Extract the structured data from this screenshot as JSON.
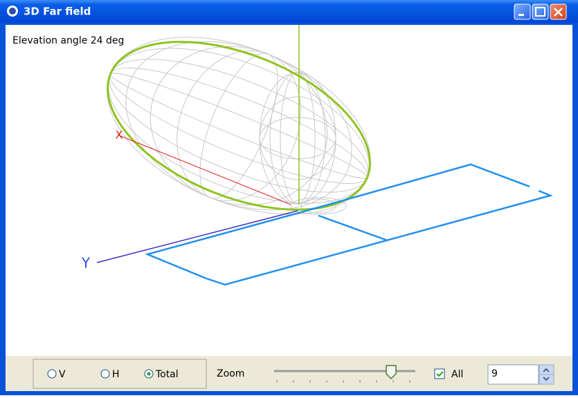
{
  "window": {
    "title": "3D Far field"
  },
  "view": {
    "annotation": "Elevation angle 24 deg",
    "x_axis_label": "X",
    "y_axis_label": "Y"
  },
  "controls": {
    "polarization": {
      "options": [
        "V",
        "H",
        "Total"
      ],
      "selected": "Total"
    },
    "zoom_label": "Zoom",
    "all_checkbox": {
      "label": "All",
      "checked": true
    },
    "spin_value": "9"
  }
}
